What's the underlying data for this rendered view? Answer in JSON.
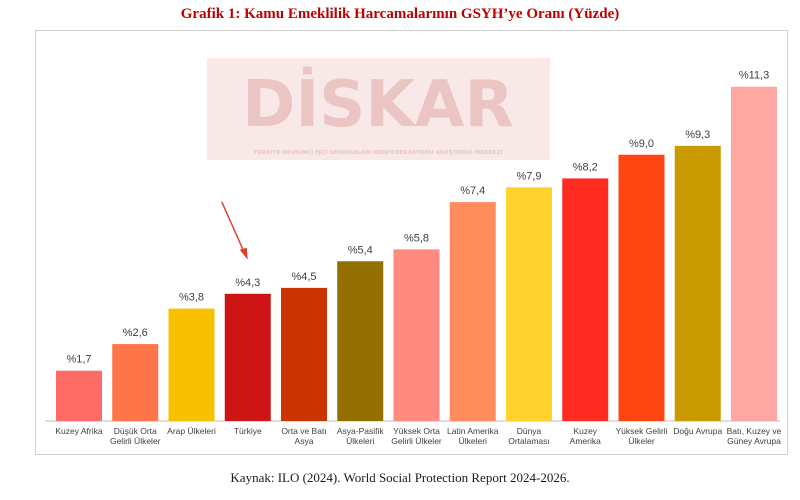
{
  "title": "Grafik 1: Kamu Emeklilik Harcamalarının GSYH’ye Oranı (Yüzde)",
  "source": "Kaynak: ILO (2024). World Social Protection Report 2024-2026.",
  "watermark": {
    "logo": "DİSKAR",
    "subtitle": "TÜRKİYE DEVRİMCİ İŞÇİ SENDİKALARI KONFEDERASYONU ARAŞTIRMA MERKEZİ"
  },
  "highlight": {
    "target": "Türkiye",
    "color": "#e03c2c"
  },
  "chart_data": {
    "type": "bar",
    "title": "Grafik 1: Kamu Emeklilik Harcamalarının GSYH’ye Oranı (Yüzde)",
    "xlabel": "",
    "ylabel": "",
    "ylim": [
      0,
      12
    ],
    "grid": false,
    "legend": "none",
    "value_prefix": "%",
    "categories": [
      [
        "Kuzey Afrika"
      ],
      [
        "Düşük Orta",
        "Gelirli Ülkeler"
      ],
      [
        "Arap Ülkeleri"
      ],
      [
        "Türkiye"
      ],
      [
        "Orta ve Batı",
        "Asya"
      ],
      [
        "Asya-Pasifik",
        "Ülkeleri"
      ],
      [
        "Yüksek Orta",
        "Gelirli Ülkeler"
      ],
      [
        "Latin Amerika",
        "Ülkeleri"
      ],
      [
        "Dünya",
        "Ortalaması"
      ],
      [
        "Kuzey",
        "Amerika"
      ],
      [
        "Yüksek Gelirli",
        "Ülkeler"
      ],
      [
        "Doğu Avrupa"
      ],
      [
        "Batı, Kuzey ve",
        "Güney Avrupa"
      ]
    ],
    "values": [
      1.7,
      2.6,
      3.8,
      4.3,
      4.5,
      5.4,
      5.8,
      7.4,
      7.9,
      8.2,
      9.0,
      9.3,
      11.3
    ],
    "value_labels": [
      "%1,7",
      "%2,6",
      "%3,8",
      "%4,3",
      "%4,5",
      "%5,4",
      "%5,8",
      "%7,4",
      "%7,9",
      "%8,2",
      "%9,0",
      "%9,3",
      "%11,3"
    ],
    "colors": [
      "#ff6b66",
      "#ff7448",
      "#f7c000",
      "#cc1414",
      "#c93400",
      "#947000",
      "#ff8a80",
      "#ff8c5c",
      "#ffd22e",
      "#ff2a20",
      "#ff4510",
      "#c89a00",
      "#ffa7a2"
    ]
  }
}
